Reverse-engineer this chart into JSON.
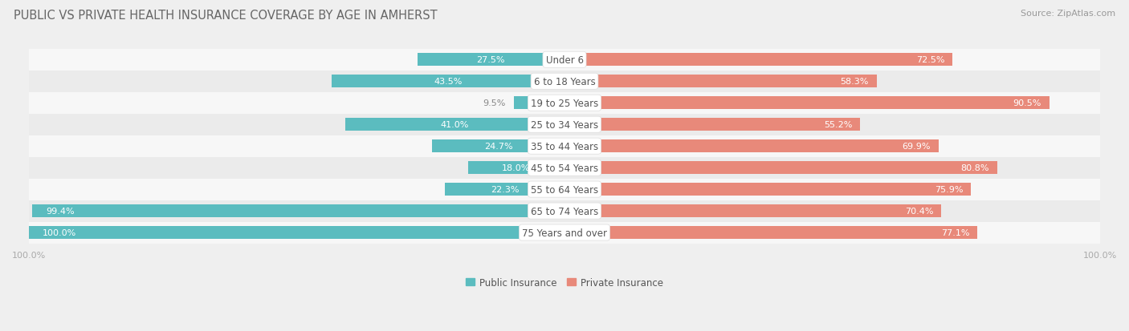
{
  "title": "PUBLIC VS PRIVATE HEALTH INSURANCE COVERAGE BY AGE IN AMHERST",
  "source": "Source: ZipAtlas.com",
  "categories": [
    "Under 6",
    "6 to 18 Years",
    "19 to 25 Years",
    "25 to 34 Years",
    "35 to 44 Years",
    "45 to 54 Years",
    "55 to 64 Years",
    "65 to 74 Years",
    "75 Years and over"
  ],
  "public_values": [
    27.5,
    43.5,
    9.5,
    41.0,
    24.7,
    18.0,
    22.3,
    99.4,
    100.0
  ],
  "private_values": [
    72.5,
    58.3,
    90.5,
    55.2,
    69.9,
    80.8,
    75.9,
    70.4,
    77.1
  ],
  "public_color": "#5BBCBF",
  "private_color": "#E8897A",
  "bg_color": "#EFEFEF",
  "row_bg_even": "#F7F7F7",
  "row_bg_odd": "#EBEBEB",
  "title_color": "#666666",
  "source_color": "#999999",
  "label_color": "#555555",
  "value_color_inside": "#FFFFFF",
  "value_color_outside": "#888888",
  "axis_color": "#AAAAAA",
  "title_fontsize": 10.5,
  "source_fontsize": 8,
  "cat_fontsize": 8.5,
  "value_fontsize": 8,
  "legend_fontsize": 8.5,
  "axis_label_fontsize": 8
}
